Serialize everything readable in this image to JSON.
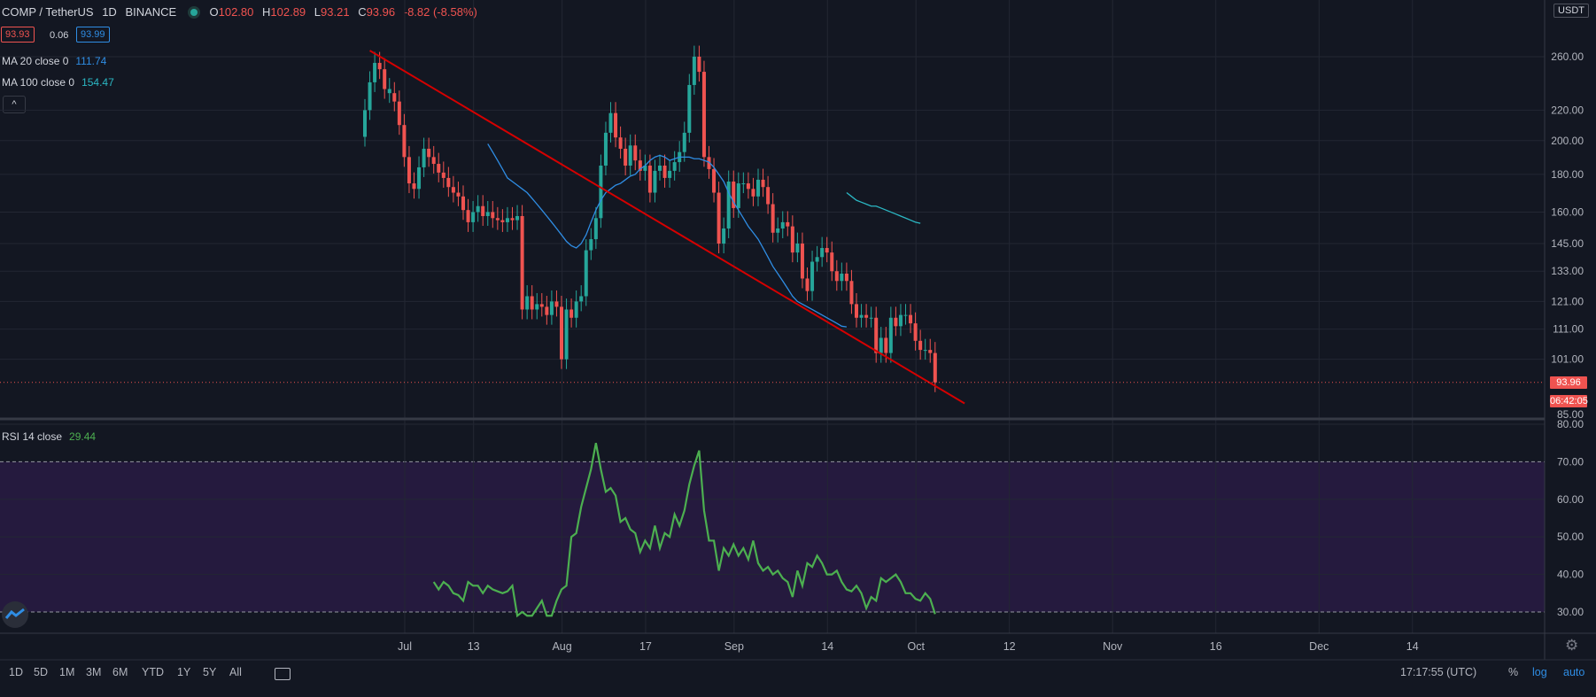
{
  "header": {
    "symbol": "COMP / TetherUS",
    "interval": "1D",
    "exchange": "BINANCE",
    "o_label": "O",
    "o_value": "102.80",
    "h_label": "H",
    "h_value": "102.89",
    "l_label": "L",
    "l_value": "93.21",
    "c_label": "C",
    "c_value": "93.96",
    "change": "-8.82 (-8.58%)",
    "bid": "93.93",
    "spread": "0.06",
    "ask": "93.99"
  },
  "indicators": {
    "ma20_label": "MA 20 close 0",
    "ma20_value": "111.74",
    "ma100_label": "MA 100 close 0",
    "ma100_value": "154.47",
    "rsi_label": "RSI 14 close",
    "rsi_value": "29.44"
  },
  "price_axis": {
    "currency": "USDT",
    "current_price": "93.96",
    "countdown": "06:42:05"
  },
  "bottom_bar": {
    "ranges": [
      "1D",
      "5D",
      "1M",
      "3M",
      "6M",
      "YTD",
      "1Y",
      "5Y",
      "All"
    ],
    "time": "17:17:55 (UTC)",
    "percent": "%",
    "log": "log",
    "auto": "auto"
  },
  "colors": {
    "up": "#26a69a",
    "down": "#ef5350",
    "ma20": "#2f8de4",
    "ma100": "#2bb7c3",
    "trendline": "#d50000",
    "rsi": "#4caf50",
    "rsi_band": "#251a3e"
  },
  "chart_data": [
    {
      "type": "candlestick",
      "title": "COMP / TetherUS 1D BINANCE",
      "scale": "log",
      "y_ticks": [
        85,
        101,
        111,
        121,
        133,
        145,
        160,
        180,
        200,
        220,
        260
      ],
      "y_tick_labels": [
        "85.00",
        "101.00",
        "111.00",
        "121.00",
        "133.00",
        "145.00",
        "160.00",
        "180.00",
        "200.00",
        "220.00",
        "260.00"
      ],
      "x_ticks": [
        "Jul",
        "13",
        "Aug",
        "17",
        "Sep",
        "14",
        "Oct",
        "12",
        "Nov",
        "16",
        "Dec",
        "14"
      ],
      "grid": true,
      "candles_close": [
        220,
        240,
        255,
        250,
        235,
        232,
        226,
        210,
        190,
        175,
        172,
        184,
        195,
        190,
        186,
        181,
        178,
        173,
        170,
        168,
        161,
        155,
        160,
        163,
        158,
        160,
        157,
        156,
        155,
        157,
        156,
        158,
        118,
        123,
        118,
        120,
        119,
        116,
        121,
        119,
        101,
        118,
        115,
        121,
        123,
        142,
        147,
        157,
        185,
        205,
        218,
        202,
        195,
        185,
        197,
        188,
        182,
        185,
        170,
        182,
        185,
        178,
        182,
        187,
        193,
        205,
        238,
        260,
        248,
        190,
        183,
        170,
        145,
        152,
        176,
        162,
        175,
        175,
        172,
        168,
        177,
        173,
        164,
        150,
        152,
        155,
        153,
        141,
        145,
        130,
        125,
        137,
        139,
        143,
        141,
        133,
        129,
        132,
        129,
        120,
        115,
        116,
        115,
        115,
        103,
        108,
        103,
        115,
        112,
        116,
        116,
        113,
        107,
        104,
        104,
        103,
        93.96
      ],
      "candle_dir": [
        "u",
        "u",
        "u",
        "d",
        "d",
        "u",
        "d",
        "d",
        "d",
        "d",
        "d",
        "u",
        "u",
        "d",
        "d",
        "d",
        "d",
        "d",
        "d",
        "d",
        "d",
        "d",
        "u",
        "u",
        "d",
        "u",
        "d",
        "d",
        "d",
        "u",
        "d",
        "u",
        "d",
        "u",
        "d",
        "u",
        "d",
        "d",
        "u",
        "d",
        "d",
        "u",
        "d",
        "u",
        "u",
        "u",
        "u",
        "u",
        "u",
        "u",
        "u",
        "d",
        "d",
        "d",
        "u",
        "d",
        "d",
        "u",
        "d",
        "u",
        "u",
        "d",
        "u",
        "u",
        "u",
        "u",
        "u",
        "u",
        "d",
        "d",
        "d",
        "d",
        "d",
        "u",
        "u",
        "d",
        "u",
        "u",
        "d",
        "d",
        "u",
        "d",
        "d",
        "d",
        "u",
        "u",
        "d",
        "d",
        "u",
        "d",
        "d",
        "u",
        "u",
        "u",
        "d",
        "d",
        "d",
        "u",
        "d",
        "d",
        "d",
        "u",
        "d",
        "u",
        "d",
        "u",
        "d",
        "u",
        "d",
        "u",
        "u",
        "d",
        "d",
        "d",
        "u",
        "d",
        "d"
      ],
      "ma20": {
        "start_index": 25,
        "values": [
          198,
          193,
          188,
          183,
          178,
          176,
          174,
          172,
          170,
          167,
          164,
          161,
          158,
          155,
          152,
          149,
          146,
          144,
          143,
          145,
          149,
          155,
          161,
          166,
          170,
          172,
          174,
          175,
          177,
          179,
          180,
          183,
          185,
          188,
          190,
          191,
          190,
          188,
          189,
          190,
          190,
          190,
          189,
          189,
          188,
          187,
          184,
          180,
          176,
          170,
          165,
          161,
          157,
          153,
          150,
          147,
          143,
          139,
          135,
          132,
          129,
          126,
          123,
          121,
          120,
          119,
          118,
          117,
          116,
          115,
          114,
          113,
          112,
          111.74
        ]
      },
      "ma100": {
        "start_index": 98,
        "values": [
          170,
          168,
          166,
          165,
          164,
          163,
          163,
          162,
          161,
          160,
          159,
          158,
          157,
          156,
          155,
          154.47
        ]
      },
      "trendline": {
        "from": {
          "index": 1,
          "price": 265
        },
        "to": {
          "index": 122,
          "price": 88
        }
      },
      "last_price": 93.96
    },
    {
      "type": "line",
      "title": "RSI 14 close",
      "y_ticks": [
        30,
        40,
        50,
        60,
        70,
        80
      ],
      "y_tick_labels": [
        "30.00",
        "40.00",
        "50.00",
        "60.00",
        "70.00",
        "80.00"
      ],
      "band": [
        30,
        70
      ],
      "start_index": 14,
      "values": [
        38,
        36,
        38,
        37,
        35,
        34.5,
        33,
        38,
        37,
        37,
        35,
        37,
        36,
        35.5,
        35,
        35.5,
        37,
        29,
        30,
        29,
        29,
        31,
        33,
        29,
        29,
        33,
        36,
        37,
        50,
        51,
        58,
        63,
        68,
        75,
        68,
        62,
        63,
        61,
        54,
        55,
        52,
        51,
        46,
        49,
        47,
        53,
        47,
        51,
        50,
        56,
        53,
        57,
        64,
        69,
        73,
        57,
        49,
        49,
        41,
        47,
        45,
        48,
        45,
        47,
        44,
        49,
        43,
        41,
        42,
        40,
        41,
        39,
        38,
        34,
        41,
        37,
        43,
        42,
        45,
        43,
        40,
        40,
        41,
        38,
        36,
        35.5,
        37,
        35,
        31,
        34,
        33,
        39,
        38,
        39,
        40,
        38,
        35,
        35,
        33.5,
        33,
        35,
        33.5,
        29.44
      ]
    }
  ]
}
